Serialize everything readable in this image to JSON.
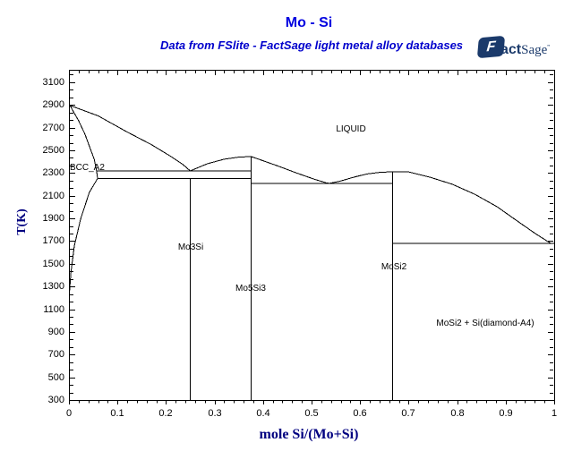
{
  "header": {
    "title": "Mo - Si",
    "subtitle": "Data from FSlite - FactSage light metal alloy databases"
  },
  "logo": {
    "f": "F",
    "fact": "act",
    "sage": "Sage",
    "tm": "”"
  },
  "colors": {
    "title_blue": "#0000E0",
    "subtitle_blue": "#0000CC",
    "axis_label_navy": "#000080",
    "logo_navy": "#1B3A6B",
    "line_color": "#000000",
    "background": "#FFFFFF"
  },
  "chart_data": {
    "type": "line",
    "title": "Mo - Si",
    "xlabel": "mole Si/(Mo+Si)",
    "ylabel": "T(K)",
    "x_range": [
      0,
      1
    ],
    "t_axis_top": 3210,
    "t_axis_bottom": 300,
    "grid": false,
    "x_ticks": {
      "values": [
        0,
        0.1,
        0.2,
        0.3,
        0.4,
        0.5,
        0.6,
        0.7,
        0.8,
        0.9,
        1
      ],
      "labels": [
        "0",
        "0.1",
        "0.2",
        "0.3",
        "0.4",
        "0.5",
        "0.6",
        "0.7",
        "0.8",
        "0.9",
        "1"
      ],
      "minor_step": 0.02
    },
    "y_ticks": {
      "values": [
        3100,
        2900,
        2700,
        2500,
        2300,
        2100,
        1900,
        1700,
        1500,
        1300,
        1100,
        900,
        700,
        500,
        300
      ],
      "labels": [
        "3100",
        "2900",
        "2700",
        "2500",
        "2300",
        "2100",
        "1900",
        "1700",
        "1500",
        "1300",
        "1100",
        "900",
        "700",
        "500",
        "300"
      ],
      "minors_per_major": 3
    },
    "boundaries": [
      {
        "name": "liquidus-mo-to-eutectic1",
        "points": [
          [
            0.002,
            2896
          ],
          [
            0.06,
            2805
          ],
          [
            0.12,
            2662
          ],
          [
            0.17,
            2551
          ],
          [
            0.21,
            2447
          ],
          [
            0.235,
            2375
          ],
          [
            0.25,
            2319
          ]
        ]
      },
      {
        "name": "liquidus-eutectic1-to-mo5si3-max",
        "points": [
          [
            0.25,
            2319
          ],
          [
            0.285,
            2382
          ],
          [
            0.32,
            2422
          ],
          [
            0.35,
            2440
          ],
          [
            0.375,
            2446
          ]
        ]
      },
      {
        "name": "liquidus-mo5si3-max-to-eutectic2",
        "points": [
          [
            0.375,
            2446
          ],
          [
            0.402,
            2406
          ],
          [
            0.43,
            2363
          ],
          [
            0.467,
            2304
          ],
          [
            0.504,
            2248
          ],
          [
            0.53,
            2214
          ],
          [
            0.537,
            2209
          ]
        ]
      },
      {
        "name": "liquidus-eutectic2-to-mosi2-max",
        "points": [
          [
            0.537,
            2209
          ],
          [
            0.559,
            2229
          ],
          [
            0.587,
            2264
          ],
          [
            0.614,
            2292
          ],
          [
            0.642,
            2307
          ],
          [
            0.666,
            2311
          ],
          [
            0.699,
            2311
          ]
        ]
      },
      {
        "name": "liquidus-mosi2-to-si-eutectic",
        "points": [
          [
            0.699,
            2311
          ],
          [
            0.744,
            2264
          ],
          [
            0.79,
            2201
          ],
          [
            0.836,
            2114
          ],
          [
            0.882,
            2004
          ],
          [
            0.924,
            1877
          ],
          [
            0.961,
            1767
          ],
          [
            0.987,
            1696
          ],
          [
            0.993,
            1681
          ]
        ]
      },
      {
        "name": "bcc-solidus",
        "points": [
          [
            0.002,
            2896
          ],
          [
            0.02,
            2761
          ],
          [
            0.033,
            2642
          ],
          [
            0.044,
            2516
          ],
          [
            0.052,
            2422
          ],
          [
            0.057,
            2319
          ]
        ]
      },
      {
        "name": "bcc-boundary-between-invariants",
        "points": [
          [
            0.057,
            2319
          ],
          [
            0.059,
            2252
          ]
        ]
      },
      {
        "name": "bcc-solvus",
        "points": [
          [
            0.059,
            2252
          ],
          [
            0.042,
            2130
          ],
          [
            0.024,
            1893
          ],
          [
            0.011,
            1657
          ],
          [
            0.004,
            1420
          ],
          [
            0.001,
            1240
          ]
        ]
      },
      {
        "name": "eutectic-line-bcc-mo5si3",
        "points": [
          [
            0.057,
            2319
          ],
          [
            0.375,
            2319
          ]
        ]
      },
      {
        "name": "peritectoid-line-mo3si",
        "points": [
          [
            0.059,
            2252
          ],
          [
            0.375,
            2252
          ]
        ]
      },
      {
        "name": "eutectic-line-mo5si3-mosi2",
        "points": [
          [
            0.375,
            2209
          ],
          [
            0.667,
            2209
          ]
        ]
      },
      {
        "name": "eutectic-line-mosi2-si",
        "points": [
          [
            0.667,
            1679
          ],
          [
            1.0,
            1679
          ]
        ]
      },
      {
        "name": "mo3si-compound-line",
        "points": [
          [
            0.25,
            2252
          ],
          [
            0.25,
            300
          ]
        ]
      },
      {
        "name": "mo5si3-compound-line",
        "points": [
          [
            0.375,
            2446
          ],
          [
            0.375,
            300
          ]
        ]
      },
      {
        "name": "mosi2-compound-line",
        "points": [
          [
            0.667,
            2311
          ],
          [
            0.667,
            300
          ]
        ]
      }
    ],
    "phase_labels": [
      {
        "name": "liquid",
        "text": "LIQUID",
        "x": 0.581,
        "T": 2682,
        "align": "center"
      },
      {
        "name": "bcc-a2",
        "text": "BCC_A2",
        "x": 0.002,
        "T": 2339,
        "align": "left"
      },
      {
        "name": "mo3si",
        "text": "Mo3Si",
        "x": 0.25,
        "T": 1641,
        "align": "center"
      },
      {
        "name": "mo5si3",
        "text": "Mo5Si3",
        "x": 0.375,
        "T": 1278,
        "align": "center"
      },
      {
        "name": "mosi2",
        "text": "MoSi2",
        "x": 0.67,
        "T": 1467,
        "align": "center"
      },
      {
        "name": "mosi2-plus-si",
        "text": "MoSi2 + Si(diamond-A4)",
        "x": 0.858,
        "T": 970,
        "align": "center"
      }
    ]
  }
}
